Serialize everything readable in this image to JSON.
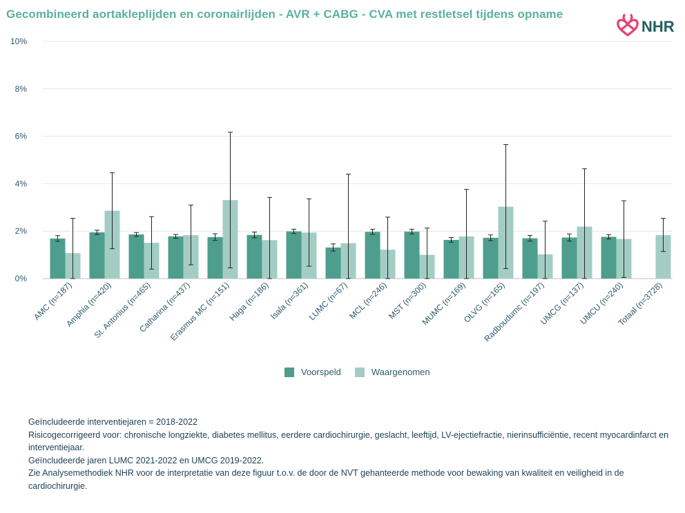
{
  "title": "Gecombineerd aortakleplijden en coronairlijden - AVR + CABG - CVA met restletsel tijdens opname",
  "logo": {
    "text": "NHR",
    "icon": "nhr-heart-logo-icon",
    "color_icon": "#e8416f",
    "color_text": "#1f5e63"
  },
  "colors": {
    "voorspeld": "#4e9e8d",
    "waargenomen": "#a3cdc4",
    "axis_text": "#2d5a6b",
    "title": "#5bb0a0"
  },
  "legend": {
    "voorspeld": "Voorspeld",
    "waargenomen": "Waargenomen"
  },
  "chart_data": {
    "type": "bar",
    "categories": [
      "AMC (n=187)",
      "Amphia (n=420)",
      "St. Antonius (n=465)",
      "Catharina (n=437)",
      "Erasmus MC (n=151)",
      "Haga (n=186)",
      "Isala (n=361)",
      "LUMC (n=67)",
      "MCL (n=246)",
      "MST (n=300)",
      "MUMC (n=169)",
      "OLVG (n=165)",
      "Radboudumc (n=197)",
      "UMCG (n=137)",
      "UMCU (n=240)",
      "Totaal (n=3728)"
    ],
    "series": [
      {
        "name": "Voorspeld",
        "values": [
          1.69,
          1.95,
          1.86,
          1.78,
          1.75,
          1.84,
          1.99,
          1.31,
          1.97,
          1.98,
          1.63,
          1.72,
          1.7,
          1.73,
          1.76,
          null
        ],
        "error_low": [
          1.57,
          1.86,
          1.78,
          1.7,
          1.61,
          1.72,
          1.9,
          1.16,
          1.86,
          1.88,
          1.53,
          1.6,
          1.58,
          1.58,
          1.67,
          null
        ],
        "error_high": [
          1.81,
          2.04,
          1.94,
          1.86,
          1.89,
          1.96,
          2.08,
          1.46,
          2.08,
          2.08,
          1.73,
          1.84,
          1.82,
          1.88,
          1.85,
          null
        ]
      },
      {
        "name": "Waargenomen",
        "values": [
          1.07,
          2.86,
          1.51,
          1.83,
          3.31,
          1.62,
          1.94,
          1.49,
          1.22,
          1.0,
          1.78,
          3.03,
          1.02,
          2.19,
          1.67,
          1.83
        ],
        "error_low": [
          0.0,
          1.26,
          0.4,
          0.58,
          0.45,
          0.0,
          0.52,
          0.0,
          0.0,
          0.0,
          0.0,
          0.42,
          0.0,
          0.0,
          0.05,
          1.14
        ],
        "error_high": [
          2.54,
          4.46,
          2.61,
          3.1,
          6.17,
          3.42,
          3.36,
          4.4,
          2.59,
          2.13,
          3.76,
          5.65,
          2.42,
          4.63,
          3.28,
          2.54
        ]
      }
    ],
    "yticks": [
      "0%",
      "2%",
      "4%",
      "6%",
      "8%",
      "10%"
    ],
    "ylim": [
      0,
      10
    ],
    "grid": true,
    "legend_position": "bottom"
  },
  "notes": [
    "Geïncludeerde interventiejaren = 2018-2022",
    "Risicogecorrigeerd voor: chronische longziekte, diabetes mellitus, eerdere cardiochirurgie, geslacht, leeftijd, LV-ejectiefractie, nierinsufficiëntie, recent myocardinfarct en interventiejaar.",
    "Geïncludeerde jaren LUMC 2021-2022 en UMCG 2019-2022.",
    "Zie Analysemethodiek NHR voor de interpretatie van deze figuur t.o.v. de door de NVT gehanteerde methode voor bewaking van kwaliteit en veiligheid in de cardiochirurgie."
  ]
}
